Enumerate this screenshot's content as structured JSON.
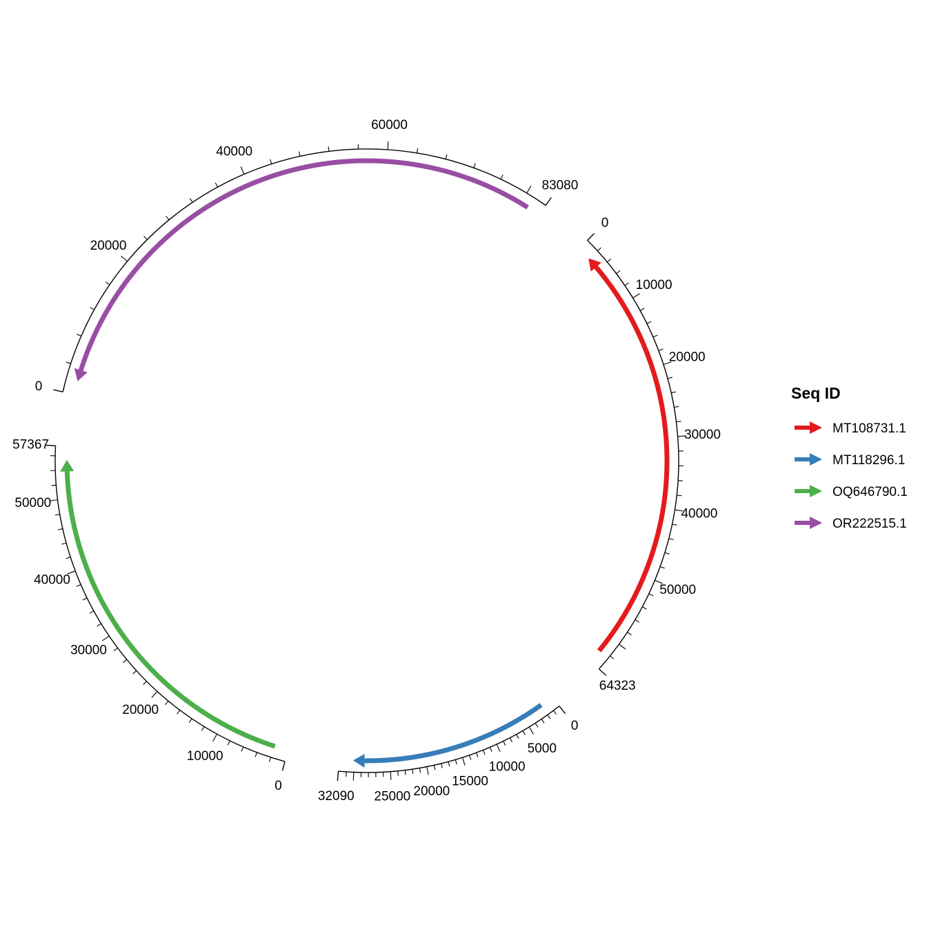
{
  "chart_data": {
    "type": "circular-genome-map",
    "legend_title": "Seq ID",
    "sequences": [
      {
        "id": "MT108731.1",
        "length": 64323,
        "color": "#E41A1C",
        "direction": "reverse",
        "tick_labels": [
          "0",
          "10000",
          "20000",
          "30000",
          "40000",
          "50000",
          "64323"
        ]
      },
      {
        "id": "MT118296.1",
        "length": 32090,
        "color": "#377EB8",
        "direction": "forward",
        "tick_labels": [
          "0",
          "5000",
          "10000",
          "15000",
          "20000",
          "25000",
          "32090"
        ]
      },
      {
        "id": "OQ646790.1",
        "length": 57367,
        "color": "#4DAF4A",
        "direction": "forward",
        "tick_labels": [
          "0",
          "10000",
          "20000",
          "30000",
          "40000",
          "50000",
          "57367"
        ]
      },
      {
        "id": "OR222515.1",
        "length": 83080,
        "color": "#984EA3",
        "direction": "reverse",
        "tick_labels": [
          "0",
          "20000",
          "40000",
          "60000",
          "83080"
        ]
      }
    ]
  }
}
